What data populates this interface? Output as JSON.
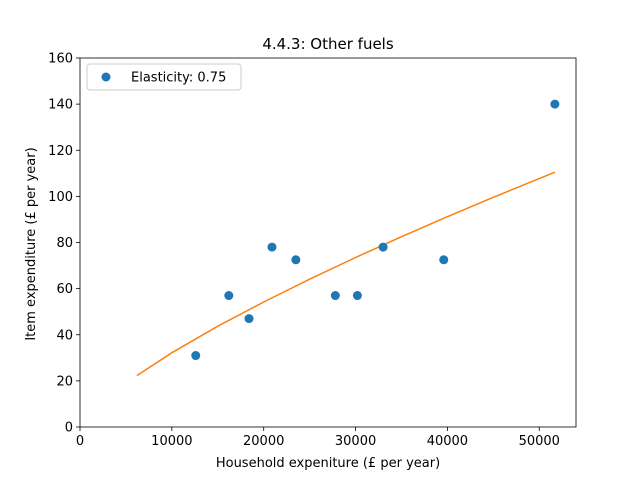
{
  "chart_data": {
    "type": "scatter",
    "title": "4.4.3: Other fuels",
    "xlabel": "Household expeniture (£ per year)",
    "ylabel": "Item expenditure (£ per year)",
    "xlim": [
      0,
      54000
    ],
    "ylim": [
      0,
      160
    ],
    "xticks": [
      0,
      10000,
      20000,
      30000,
      40000,
      50000
    ],
    "yticks": [
      0,
      20,
      40,
      60,
      80,
      100,
      120,
      140,
      160
    ],
    "grid": false,
    "legend_position": "upper-left",
    "series": [
      {
        "name": "Elasticity: 0.75",
        "kind": "points",
        "color": "#1f77b4",
        "points": [
          {
            "x": 12600,
            "y": 31
          },
          {
            "x": 16200,
            "y": 57
          },
          {
            "x": 18400,
            "y": 47
          },
          {
            "x": 20900,
            "y": 78
          },
          {
            "x": 23500,
            "y": 72.5
          },
          {
            "x": 27800,
            "y": 57
          },
          {
            "x": 30200,
            "y": 57
          },
          {
            "x": 33000,
            "y": 78
          },
          {
            "x": 39600,
            "y": 72.5
          },
          {
            "x": 51700,
            "y": 140
          }
        ]
      },
      {
        "kind": "fit-line",
        "color": "#ff7f0e",
        "elasticity": 0.75,
        "points": [
          {
            "x": 6200,
            "y": 22.3
          },
          {
            "x": 10000,
            "y": 32.2
          },
          {
            "x": 15000,
            "y": 43.7
          },
          {
            "x": 20000,
            "y": 54.2
          },
          {
            "x": 25000,
            "y": 64.1
          },
          {
            "x": 30000,
            "y": 73.5
          },
          {
            "x": 35000,
            "y": 82.5
          },
          {
            "x": 40000,
            "y": 91.2
          },
          {
            "x": 45000,
            "y": 99.6
          },
          {
            "x": 51700,
            "y": 110.5
          }
        ]
      }
    ]
  }
}
